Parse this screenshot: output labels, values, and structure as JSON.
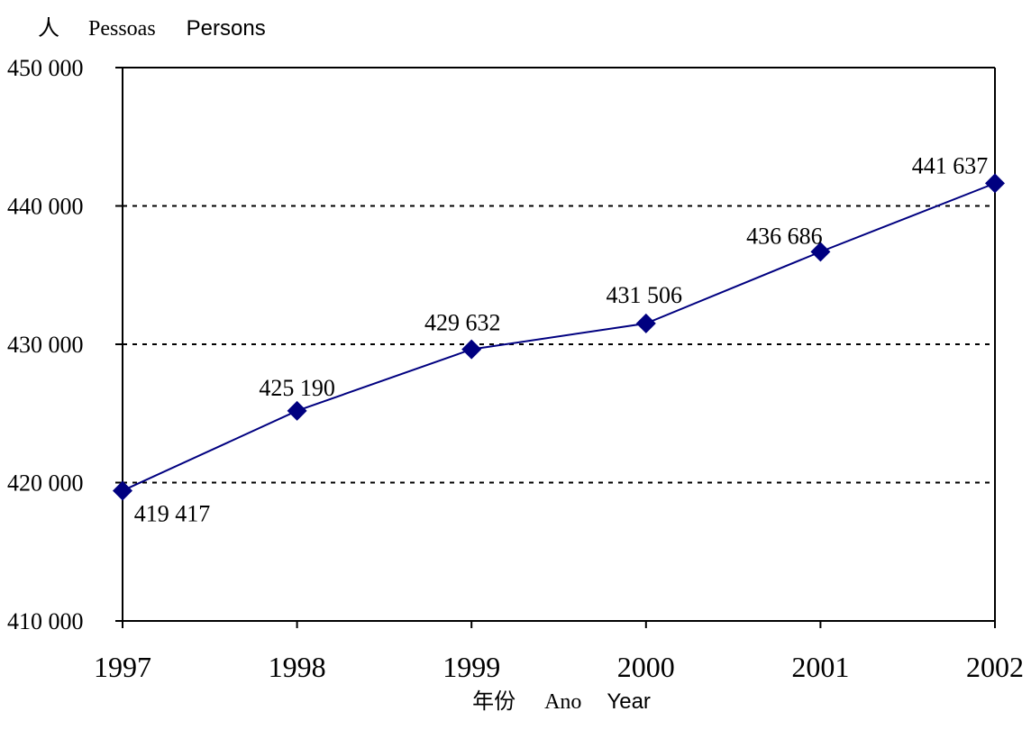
{
  "chart_data": {
    "type": "line",
    "ylabel_zh": "人",
    "ylabel_pt": "Pessoas",
    "ylabel_en": "Persons",
    "xlabel_zh": "年份",
    "xlabel_pt": "Ano",
    "xlabel_en": "Year",
    "x": [
      "1997",
      "1998",
      "1999",
      "2000",
      "2001",
      "2002"
    ],
    "values": [
      419417,
      425190,
      429632,
      431506,
      436686,
      441637
    ],
    "value_labels": [
      "419 417",
      "425 190",
      "429 632",
      "431 506",
      "436 686",
      "441 637"
    ],
    "ylim": [
      410000,
      450000
    ],
    "yticks": [
      410000,
      420000,
      430000,
      440000,
      450000
    ],
    "ytick_labels": [
      "410 000",
      "420 000",
      "430 000",
      "440 000",
      "450 000"
    ],
    "grid": "dashed horizontal",
    "line_color": "#000080",
    "marker": "diamond"
  }
}
